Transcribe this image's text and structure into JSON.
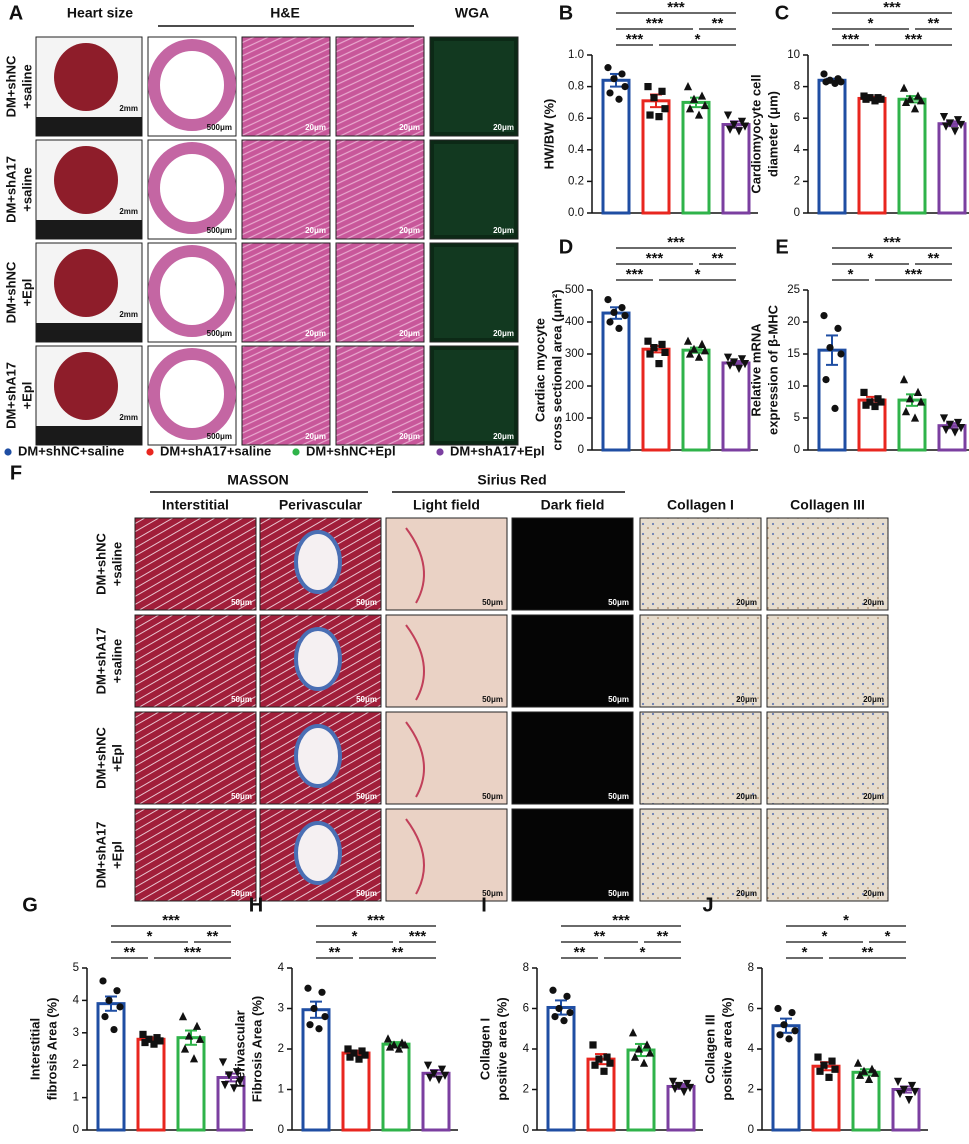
{
  "panel_a": {
    "label": "A",
    "headers": [
      "Heart size",
      "H&E",
      "WGA"
    ],
    "rows": [
      [
        "DM+shNC",
        "+saline"
      ],
      [
        "DM+shA17",
        "+saline"
      ],
      [
        "DM+shNC",
        "+Epl"
      ],
      [
        "DM+shA17",
        "+Epl"
      ]
    ],
    "scale_labels": [
      "2mm",
      "500μm",
      "20μm",
      "20μm",
      "20μm"
    ]
  },
  "legend": [
    {
      "name": "DM+shNC+saline",
      "color": "#1f4ea3"
    },
    {
      "name": "DM+shA17+saline",
      "color": "#e8261f"
    },
    {
      "name": "DM+shNC+Epl",
      "color": "#2fb34a"
    },
    {
      "name": "DM+shA17+Epl",
      "color": "#7b3fa0"
    }
  ],
  "panel_f": {
    "label": "F",
    "groups": [
      "MASSON",
      "Sirius Red"
    ],
    "columns": [
      "Interstitial",
      "Perivascular",
      "Light field",
      "Dark field",
      "Collagen I",
      "Collagen III"
    ],
    "rows": [
      [
        "DM+shNC",
        "+saline"
      ],
      [
        "DM+shA17",
        "+saline"
      ],
      [
        "DM+shNC",
        "+Epl"
      ],
      [
        "DM+shA17",
        "+Epl"
      ]
    ],
    "scale_labels": [
      "50μm",
      "50μm",
      "50μm",
      "50μm",
      "20μm",
      "20μm"
    ]
  },
  "chart_data": [
    {
      "type": "bar",
      "label": "B",
      "y_label": [
        "HW/BW (%)"
      ],
      "colors": [
        "#1f4ea3",
        "#e8261f",
        "#2fb34a",
        "#7b3fa0"
      ],
      "values": [
        0.84,
        0.71,
        0.7,
        0.56
      ],
      "errors": [
        0.04,
        0.04,
        0.03,
        0.02
      ],
      "points": [
        [
          0.92,
          0.88,
          0.85,
          0.8,
          0.76,
          0.72
        ],
        [
          0.8,
          0.77,
          0.73,
          0.66,
          0.62,
          0.61
        ],
        [
          0.8,
          0.74,
          0.72,
          0.68,
          0.66,
          0.62
        ],
        [
          0.62,
          0.58,
          0.56,
          0.55,
          0.53,
          0.52
        ]
      ],
      "ylim": [
        0,
        1
      ],
      "yticks": [
        {
          "value": 0,
          "label": "0.0"
        },
        0.2,
        0.4,
        0.6,
        0.8,
        {
          "value": 1,
          "label": "1.0"
        }
      ],
      "significance": [
        [
          "***"
        ],
        [
          "***",
          "**"
        ],
        [
          "***",
          "*"
        ]
      ]
    },
    {
      "type": "bar",
      "label": "C",
      "y_label": [
        "Cardiomyocyte cell",
        "diameter (μm)"
      ],
      "colors": [
        "#1f4ea3",
        "#e8261f",
        "#2fb34a",
        "#7b3fa0"
      ],
      "values": [
        8.4,
        7.25,
        7.2,
        5.65
      ],
      "errors": [
        0.1,
        0.1,
        0.2,
        0.15
      ],
      "points": [
        [
          8.8,
          8.5,
          8.4,
          8.3,
          8.3,
          8.2
        ],
        [
          7.4,
          7.3,
          7.3,
          7.2,
          7.2,
          7.1
        ],
        [
          7.9,
          7.4,
          7.2,
          7.1,
          7.0,
          6.6
        ],
        [
          6.1,
          5.9,
          5.7,
          5.6,
          5.5,
          5.2
        ]
      ],
      "ylim": [
        0,
        10
      ],
      "yticks": [
        0,
        2,
        4,
        6,
        8,
        10
      ],
      "significance": [
        [
          "***"
        ],
        [
          "*",
          "**"
        ],
        [
          "***",
          "***"
        ]
      ]
    },
    {
      "type": "bar",
      "label": "D",
      "y_label": [
        "Cardiac  myocyte",
        "cross sectional area (μm²)"
      ],
      "colors": [
        "#1f4ea3",
        "#e8261f",
        "#2fb34a",
        "#7b3fa0"
      ],
      "values": [
        428,
        315,
        312,
        272
      ],
      "errors": [
        18,
        10,
        8,
        6
      ],
      "points": [
        [
          470,
          445,
          430,
          420,
          400,
          380
        ],
        [
          340,
          330,
          320,
          305,
          300,
          270
        ],
        [
          340,
          330,
          315,
          310,
          300,
          290
        ],
        [
          290,
          285,
          275,
          270,
          265,
          255
        ]
      ],
      "ylim": [
        0,
        500
      ],
      "yticks": [
        0,
        100,
        200,
        300,
        400,
        500
      ],
      "significance": [
        [
          "***"
        ],
        [
          "***",
          "**"
        ],
        [
          "***",
          "*"
        ]
      ]
    },
    {
      "type": "bar",
      "label": "E",
      "y_label": [
        "Relative mRNA",
        "expression of β-MHC"
      ],
      "colors": [
        "#1f4ea3",
        "#e8261f",
        "#2fb34a",
        "#7b3fa0"
      ],
      "values": [
        15.6,
        7.8,
        7.8,
        3.8
      ],
      "errors": [
        2.3,
        0.5,
        0.9,
        0.4
      ],
      "points": [
        [
          21,
          19,
          16,
          15,
          11,
          6.5
        ],
        [
          9,
          8,
          7.5,
          7.5,
          7,
          6.8
        ],
        [
          11,
          9,
          8,
          7.5,
          6,
          5
        ],
        [
          5,
          4.3,
          4,
          3.5,
          3.2,
          2.8
        ]
      ],
      "ylim": [
        0,
        25
      ],
      "yticks": [
        0,
        5,
        10,
        15,
        20,
        25
      ],
      "significance": [
        [
          "***"
        ],
        [
          "*",
          "**"
        ],
        [
          "*",
          "***"
        ]
      ]
    },
    {
      "type": "bar",
      "label": "G",
      "y_label": [
        "Interstitial",
        "fibrosis Area (%)"
      ],
      "colors": [
        "#1f4ea3",
        "#e8261f",
        "#2fb34a",
        "#7b3fa0"
      ],
      "values": [
        3.9,
        2.8,
        2.85,
        1.62
      ],
      "errors": [
        0.22,
        0.06,
        0.22,
        0.12
      ],
      "points": [
        [
          4.6,
          4.3,
          4.0,
          3.8,
          3.5,
          3.1
        ],
        [
          2.95,
          2.85,
          2.8,
          2.75,
          2.7,
          2.65
        ],
        [
          3.5,
          3.2,
          2.9,
          2.8,
          2.5,
          2.2
        ],
        [
          2.1,
          1.8,
          1.7,
          1.5,
          1.4,
          1.3
        ]
      ],
      "ylim": [
        0,
        5
      ],
      "yticks": [
        0,
        1,
        2,
        3,
        4,
        5
      ],
      "significance": [
        [
          "***"
        ],
        [
          "*",
          "**"
        ],
        [
          "**",
          "***"
        ]
      ]
    },
    {
      "type": "bar",
      "label": "H",
      "y_label": [
        "Perivascular",
        "Fibrosis Area (%)"
      ],
      "colors": [
        "#1f4ea3",
        "#e8261f",
        "#2fb34a",
        "#7b3fa0"
      ],
      "values": [
        2.97,
        1.9,
        2.12,
        1.4
      ],
      "errors": [
        0.2,
        0.06,
        0.05,
        0.08
      ],
      "points": [
        [
          3.5,
          3.4,
          3.0,
          2.8,
          2.6,
          2.5
        ],
        [
          2.0,
          1.95,
          1.9,
          1.85,
          1.8,
          1.75
        ],
        [
          2.25,
          2.15,
          2.1,
          2.1,
          2.05,
          2.0
        ],
        [
          1.6,
          1.5,
          1.4,
          1.35,
          1.3,
          1.25
        ]
      ],
      "ylim": [
        0,
        4
      ],
      "yticks": [
        0,
        1,
        2,
        3,
        4
      ],
      "significance": [
        [
          "***"
        ],
        [
          "*",
          "***"
        ],
        [
          "**",
          "**"
        ]
      ]
    },
    {
      "type": "bar",
      "label": "I",
      "y_label": [
        "Collagen I",
        "positive area (%)"
      ],
      "colors": [
        "#1f4ea3",
        "#e8261f",
        "#2fb34a",
        "#7b3fa0"
      ],
      "values": [
        6.05,
        3.5,
        3.95,
        2.15
      ],
      "errors": [
        0.35,
        0.25,
        0.3,
        0.12
      ],
      "points": [
        [
          6.9,
          6.6,
          6.0,
          5.8,
          5.6,
          5.4
        ],
        [
          4.2,
          3.6,
          3.5,
          3.3,
          3.2,
          2.9
        ],
        [
          4.8,
          4.2,
          4.0,
          3.8,
          3.6,
          3.3
        ],
        [
          2.4,
          2.3,
          2.2,
          2.1,
          2.05,
          1.9
        ]
      ],
      "ylim": [
        0,
        8
      ],
      "yticks": [
        0,
        2,
        4,
        6,
        8
      ],
      "significance": [
        [
          "***"
        ],
        [
          "**",
          "**"
        ],
        [
          "**",
          "*"
        ]
      ]
    },
    {
      "type": "bar",
      "label": "J",
      "y_label": [
        "Collagen III",
        "positive area (%)"
      ],
      "colors": [
        "#1f4ea3",
        "#e8261f",
        "#2fb34a",
        "#7b3fa0"
      ],
      "values": [
        5.15,
        3.15,
        2.85,
        2.0
      ],
      "errors": [
        0.35,
        0.2,
        0.15,
        0.15
      ],
      "points": [
        [
          6.0,
          5.8,
          5.2,
          4.9,
          4.7,
          4.5
        ],
        [
          3.6,
          3.4,
          3.2,
          3.0,
          2.9,
          2.6
        ],
        [
          3.3,
          3.0,
          2.9,
          2.8,
          2.7,
          2.5
        ],
        [
          2.4,
          2.2,
          2.0,
          1.9,
          1.8,
          1.5
        ]
      ],
      "ylim": [
        0,
        8
      ],
      "yticks": [
        0,
        2,
        4,
        6,
        8
      ],
      "significance": [
        [
          "*"
        ],
        [
          "*",
          "*"
        ],
        [
          "*",
          "**"
        ]
      ]
    }
  ]
}
